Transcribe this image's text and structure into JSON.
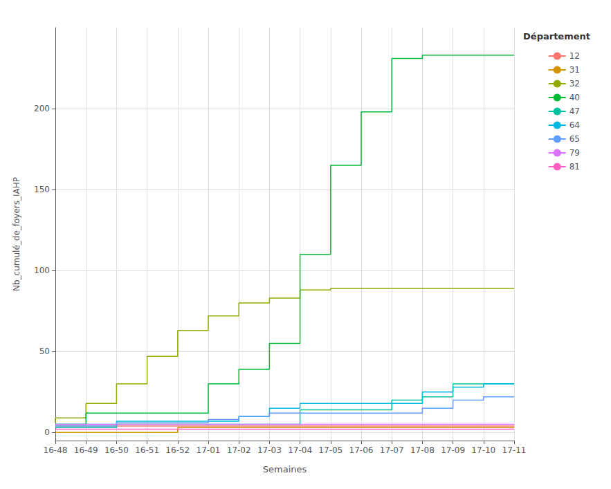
{
  "chart_data": {
    "type": "step",
    "categories": [
      "16-48",
      "16-49",
      "16-50",
      "16-51",
      "16-52",
      "17-01",
      "17-02",
      "17-03",
      "17-04",
      "17-05",
      "17-06",
      "17-07",
      "17-08",
      "17-09",
      "17-10",
      "17-11"
    ],
    "series": [
      {
        "name": "12",
        "color": "#F8766D",
        "values": [
          4,
          4,
          4,
          4,
          4,
          4,
          4,
          4,
          4,
          4,
          4,
          4,
          4,
          4,
          4,
          4
        ]
      },
      {
        "name": "31",
        "color": "#D39200",
        "values": [
          0,
          0,
          0,
          0,
          0,
          3,
          3,
          3,
          3,
          3,
          3,
          3,
          3,
          3,
          3,
          3
        ]
      },
      {
        "name": "32",
        "color": "#93AA00",
        "values": [
          6,
          9,
          18,
          30,
          47,
          63,
          72,
          80,
          83,
          88,
          89,
          89,
          89,
          89,
          89,
          89
        ]
      },
      {
        "name": "40",
        "color": "#00BA38",
        "values": [
          5,
          5,
          12,
          12,
          12,
          12,
          30,
          39,
          55,
          110,
          165,
          198,
          231,
          233,
          233,
          233
        ]
      },
      {
        "name": "47",
        "color": "#00C19F",
        "values": [
          3,
          3,
          3,
          5,
          5,
          5,
          5,
          5,
          5,
          14,
          14,
          14,
          20,
          22,
          30,
          30
        ]
      },
      {
        "name": "64",
        "color": "#00B9E3",
        "values": [
          5,
          5,
          5,
          7,
          7,
          7,
          7,
          10,
          15,
          18,
          18,
          18,
          18,
          25,
          28,
          30
        ]
      },
      {
        "name": "65",
        "color": "#619CFF",
        "values": [
          4,
          4,
          4,
          6,
          6,
          6,
          8,
          10,
          12,
          12,
          12,
          12,
          12,
          15,
          20,
          22
        ]
      },
      {
        "name": "79",
        "color": "#DB72FB",
        "values": [
          5,
          5,
          5,
          5,
          5,
          5,
          5,
          5,
          5,
          5,
          5,
          5,
          5,
          5,
          5,
          5
        ]
      },
      {
        "name": "81",
        "color": "#FF61C3",
        "values": [
          2,
          2,
          2,
          2,
          2,
          2,
          2,
          2,
          2,
          2,
          2,
          2,
          2,
          2,
          2,
          2
        ]
      }
    ],
    "xlabel": "Semaines",
    "ylabel": "Nb_cumulé_de_foyers_IAHP",
    "legend_title": "Département",
    "legend": "right",
    "ylim": [
      -5,
      250
    ],
    "yticks": [
      0,
      50,
      100,
      150,
      200
    ],
    "grid": true
  }
}
